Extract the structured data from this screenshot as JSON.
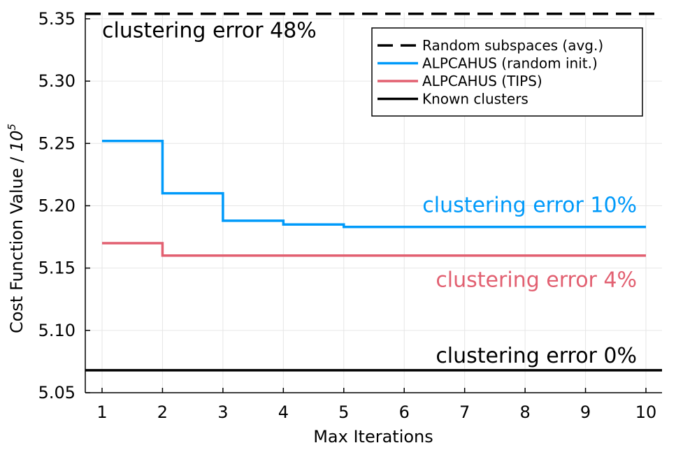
{
  "chart_data": {
    "type": "line",
    "step": "post",
    "xlabel": "Max Iterations",
    "ylabel": "Cost Function Value / ",
    "ylabel_exponent_base": "10",
    "ylabel_exponent": "5",
    "xlim": [
      0.73,
      10.27
    ],
    "ylim": [
      5.05,
      5.355
    ],
    "x_ticks": [
      1,
      2,
      3,
      4,
      5,
      6,
      7,
      8,
      9,
      10
    ],
    "x_tick_labels": [
      "1",
      "2",
      "3",
      "4",
      "5",
      "6",
      "7",
      "8",
      "9",
      "10"
    ],
    "y_ticks": [
      5.05,
      5.1,
      5.15,
      5.2,
      5.25,
      5.3,
      5.35
    ],
    "y_tick_labels": [
      "5.05",
      "5.10",
      "5.15",
      "5.20",
      "5.25",
      "5.30",
      "5.35"
    ],
    "grid": true,
    "legend_position": "top-right",
    "x": [
      1,
      2,
      3,
      4,
      5,
      6,
      7,
      8,
      9,
      10
    ],
    "series": [
      {
        "name": "Random subspaces (avg.)",
        "style": "dashed",
        "color": "#000000",
        "values": [
          5.354,
          5.354,
          5.354,
          5.354,
          5.354,
          5.354,
          5.354,
          5.354,
          5.354,
          5.354
        ],
        "full_width": true
      },
      {
        "name": "ALPCAHUS (random init.)",
        "style": "solid",
        "color": "#009AFA",
        "values": [
          5.252,
          5.21,
          5.188,
          5.185,
          5.183,
          5.183,
          5.183,
          5.183,
          5.183,
          5.183
        ],
        "full_width": false
      },
      {
        "name": "ALPCAHUS (TIPS)",
        "style": "solid",
        "color": "#E26071",
        "values": [
          5.17,
          5.16,
          5.16,
          5.16,
          5.16,
          5.16,
          5.16,
          5.16,
          5.16,
          5.16
        ],
        "full_width": false
      },
      {
        "name": "Known clusters",
        "style": "solid",
        "color": "#000000",
        "values": [
          5.068,
          5.068,
          5.068,
          5.068,
          5.068,
          5.068,
          5.068,
          5.068,
          5.068,
          5.068
        ],
        "full_width": true
      }
    ],
    "annotations": [
      {
        "text": "clustering error 48%",
        "color": "#000000",
        "x": 1.0,
        "y": 5.335,
        "anchor": "start"
      },
      {
        "text": "clustering error 10%",
        "color": "#009AFA",
        "x": 9.85,
        "y": 5.195,
        "anchor": "end"
      },
      {
        "text": "clustering error 4%",
        "color": "#E26071",
        "x": 9.85,
        "y": 5.135,
        "anchor": "end"
      },
      {
        "text": "clustering error 0%",
        "color": "#000000",
        "x": 9.85,
        "y": 5.074,
        "anchor": "end"
      }
    ]
  }
}
